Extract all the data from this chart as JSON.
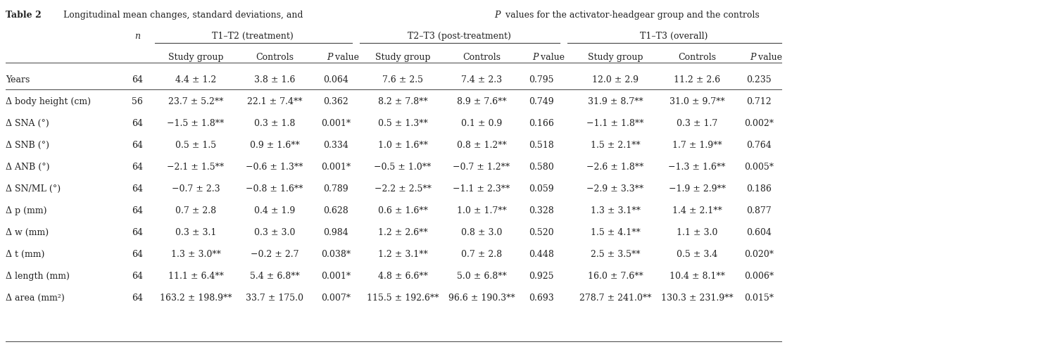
{
  "title_parts": [
    "Table 2",
    "   Longitudinal mean changes, standard deviations, and ",
    "P",
    " values for the activator-headgear group and the controls"
  ],
  "col_headers_row2": [
    "Study group",
    "Controls",
    "P value",
    "Study group",
    "Controls",
    "P value",
    "Study group",
    "Controls",
    "P value"
  ],
  "rows": [
    [
      "Years",
      "64",
      "4.4 ± 1.2",
      "3.8 ± 1.6",
      "0.064",
      "7.6 ± 2.5",
      "7.4 ± 2.3",
      "0.795",
      "12.0 ± 2.9",
      "11.2 ± 2.6",
      "0.235"
    ],
    [
      "Δ body height (cm)",
      "56",
      "23.7 ± 5.2**",
      "22.1 ± 7.4**",
      "0.362",
      "8.2 ± 7.8**",
      "8.9 ± 7.6**",
      "0.749",
      "31.9 ± 8.7**",
      "31.0 ± 9.7**",
      "0.712"
    ],
    [
      "Δ SNA (°)",
      "64",
      "−1.5 ± 1.8**",
      "0.3 ± 1.8",
      "0.001*",
      "0.5 ± 1.3**",
      "0.1 ± 0.9",
      "0.166",
      "−1.1 ± 1.8**",
      "0.3 ± 1.7",
      "0.002*"
    ],
    [
      "Δ SNB (°)",
      "64",
      "0.5 ± 1.5",
      "0.9 ± 1.6**",
      "0.334",
      "1.0 ± 1.6**",
      "0.8 ± 1.2**",
      "0.518",
      "1.5 ± 2.1**",
      "1.7 ± 1.9**",
      "0.764"
    ],
    [
      "Δ ANB (°)",
      "64",
      "−2.1 ± 1.5**",
      "−0.6 ± 1.3**",
      "0.001*",
      "−0.5 ± 1.0**",
      "−0.7 ± 1.2**",
      "0.580",
      "−2.6 ± 1.8**",
      "−1.3 ± 1.6**",
      "0.005*"
    ],
    [
      "Δ SN/ML (°)",
      "64",
      "−0.7 ± 2.3",
      "−0.8 ± 1.6**",
      "0.789",
      "−2.2 ± 2.5**",
      "−1.1 ± 2.3**",
      "0.059",
      "−2.9 ± 3.3**",
      "−1.9 ± 2.9**",
      "0.186"
    ],
    [
      "Δ p (mm)",
      "64",
      "0.7 ± 2.8",
      "0.4 ± 1.9",
      "0.628",
      "0.6 ± 1.6**",
      "1.0 ± 1.7**",
      "0.328",
      "1.3 ± 3.1**",
      "1.4 ± 2.1**",
      "0.877"
    ],
    [
      "Δ w (mm)",
      "64",
      "0.3 ± 3.1",
      "0.3 ± 3.0",
      "0.984",
      "1.2 ± 2.6**",
      "0.8 ± 3.0",
      "0.520",
      "1.5 ± 4.1**",
      "1.1 ± 3.0",
      "0.604"
    ],
    [
      "Δ t (mm)",
      "64",
      "1.3 ± 3.0**",
      "−0.2 ± 2.7",
      "0.038*",
      "1.2 ± 3.1**",
      "0.7 ± 2.8",
      "0.448",
      "2.5 ± 3.5**",
      "0.5 ± 3.4",
      "0.020*"
    ],
    [
      "Δ length (mm)",
      "64",
      "11.1 ± 6.4**",
      "5.4 ± 6.8**",
      "0.001*",
      "4.8 ± 6.6**",
      "5.0 ± 6.8**",
      "0.925",
      "16.0 ± 7.6**",
      "10.4 ± 8.1**",
      "0.006*"
    ],
    [
      "Δ area (mm²)",
      "64",
      "163.2 ± 198.9**",
      "33.7 ± 175.0",
      "0.007*",
      "115.5 ± 192.6**",
      "96.6 ± 190.3**",
      "0.693",
      "278.7 ± 241.0**",
      "130.3 ± 231.9**",
      "0.015*"
    ]
  ],
  "group_labels": [
    "T1–T2 (treatment)",
    "T2–T3 (post-treatment)",
    "T1–T3 (overall)"
  ],
  "background_color": "#ffffff",
  "text_color": "#222222",
  "fontsize": 9.0,
  "fontsize_title": 9.0
}
